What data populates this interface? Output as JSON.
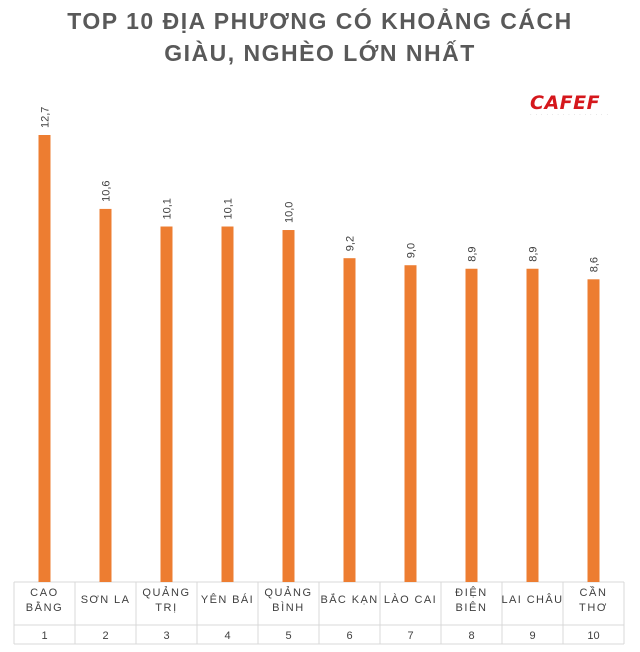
{
  "header": {
    "title_line1": "TOP 10 ĐỊA PHƯƠNG CÓ KHOẢNG CÁCH",
    "title_line2": "GIÀU, NGHÈO LỚN NHẤT"
  },
  "logo": {
    "text": "CAFEF"
  },
  "colors": {
    "bar": "#ed7d31",
    "title": "#595959",
    "logo": "#d5171c",
    "grid": "#d9d9d9"
  },
  "chart_data": {
    "type": "bar",
    "title": "TOP 10 ĐỊA PHƯƠNG CÓ KHOẢNG CÁCH GIÀU, NGHÈO LỚN NHẤT",
    "categories": [
      [
        "CAO",
        "BẰNG"
      ],
      [
        "SƠN LA"
      ],
      [
        "QUẢNG",
        "TRỊ"
      ],
      [
        "YÊN BÁI"
      ],
      [
        "QUẢNG",
        "BÌNH"
      ],
      [
        "BẮC KẠN"
      ],
      [
        "LÀO CAI"
      ],
      [
        "ĐIỆN",
        "BIÊN"
      ],
      [
        "LAI CHÂU"
      ],
      [
        "CẦN",
        "THƠ"
      ]
    ],
    "ranks": [
      "1",
      "2",
      "3",
      "4",
      "5",
      "6",
      "7",
      "8",
      "9",
      "10"
    ],
    "values": [
      12.7,
      10.6,
      10.1,
      10.1,
      10.0,
      9.2,
      9.0,
      8.9,
      8.9,
      8.6
    ],
    "data_labels": [
      "12,7",
      "10,6",
      "10,1",
      "10,1",
      "10,0",
      "9,2",
      "9,0",
      "8,9",
      "8,9",
      "8,6"
    ],
    "ylim": [
      0,
      13
    ],
    "grid": false,
    "legend": "none"
  }
}
